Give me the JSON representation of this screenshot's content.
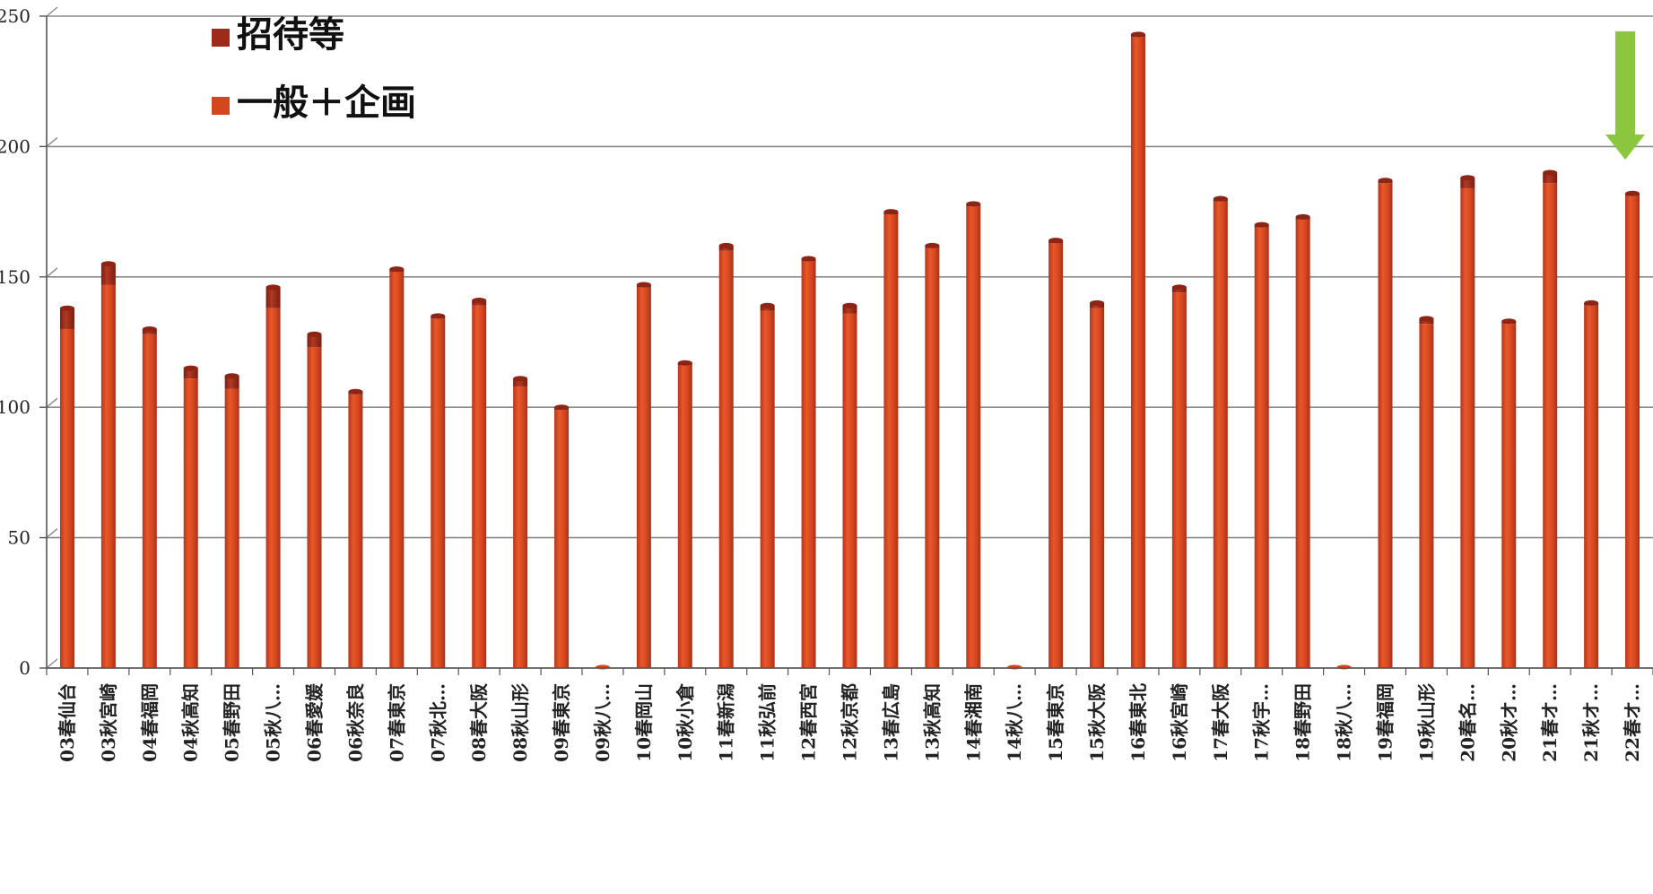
{
  "chart_data": {
    "type": "bar",
    "stacked": true,
    "categories": [
      "03春仙台",
      "03秋宮崎",
      "04春福岡",
      "04秋高知",
      "05春野田",
      "05秋八…",
      "06春愛媛",
      "06秋奈良",
      "07春東京",
      "07秋北…",
      "08春大阪",
      "08秋山形",
      "09春東京",
      "09秋八…",
      "10春岡山",
      "10秋小倉",
      "11春新潟",
      "11秋弘前",
      "12春西宮",
      "12秋京都",
      "13春広島",
      "13秋高知",
      "14春湘南",
      "14秋八…",
      "15春東京",
      "15秋大阪",
      "16春東北",
      "16秋宮崎",
      "17春大阪",
      "17秋宇…",
      "18春野田",
      "18秋八…",
      "19春福岡",
      "19秋山形",
      "20春名…",
      "20秋オ…",
      "21春オ…",
      "21秋オ…",
      "22春オ…"
    ],
    "series": [
      {
        "name": "一般＋企画",
        "color": "#D4461E",
        "values": [
          130,
          147,
          128,
          111,
          107,
          138,
          123,
          105,
          152,
          134,
          139,
          108,
          99,
          0,
          146,
          116,
          160,
          137,
          156,
          136,
          174,
          161,
          177,
          0,
          163,
          138,
          242,
          144,
          179,
          169,
          172,
          0,
          186,
          132,
          184,
          132,
          186,
          139,
          181
        ]
      },
      {
        "name": "招待等",
        "color": "#9E2A1A",
        "values": [
          8,
          8,
          2,
          4,
          5,
          8,
          5,
          1,
          1,
          1,
          2,
          3,
          1,
          0,
          1,
          1,
          2,
          2,
          1,
          3,
          1,
          1,
          1,
          0,
          1,
          2,
          1,
          2,
          1,
          1,
          1,
          0,
          1,
          2,
          4,
          1,
          4,
          1,
          1
        ]
      }
    ],
    "ylim": [
      0,
      250
    ],
    "yticks": [
      "0",
      "50",
      "100",
      "150",
      "200",
      "250"
    ],
    "grid": true,
    "legend": "top-left",
    "annotations": [
      {
        "type": "arrow",
        "target": "22春オ…",
        "color": "#8CC63F",
        "direction": "down"
      }
    ]
  }
}
